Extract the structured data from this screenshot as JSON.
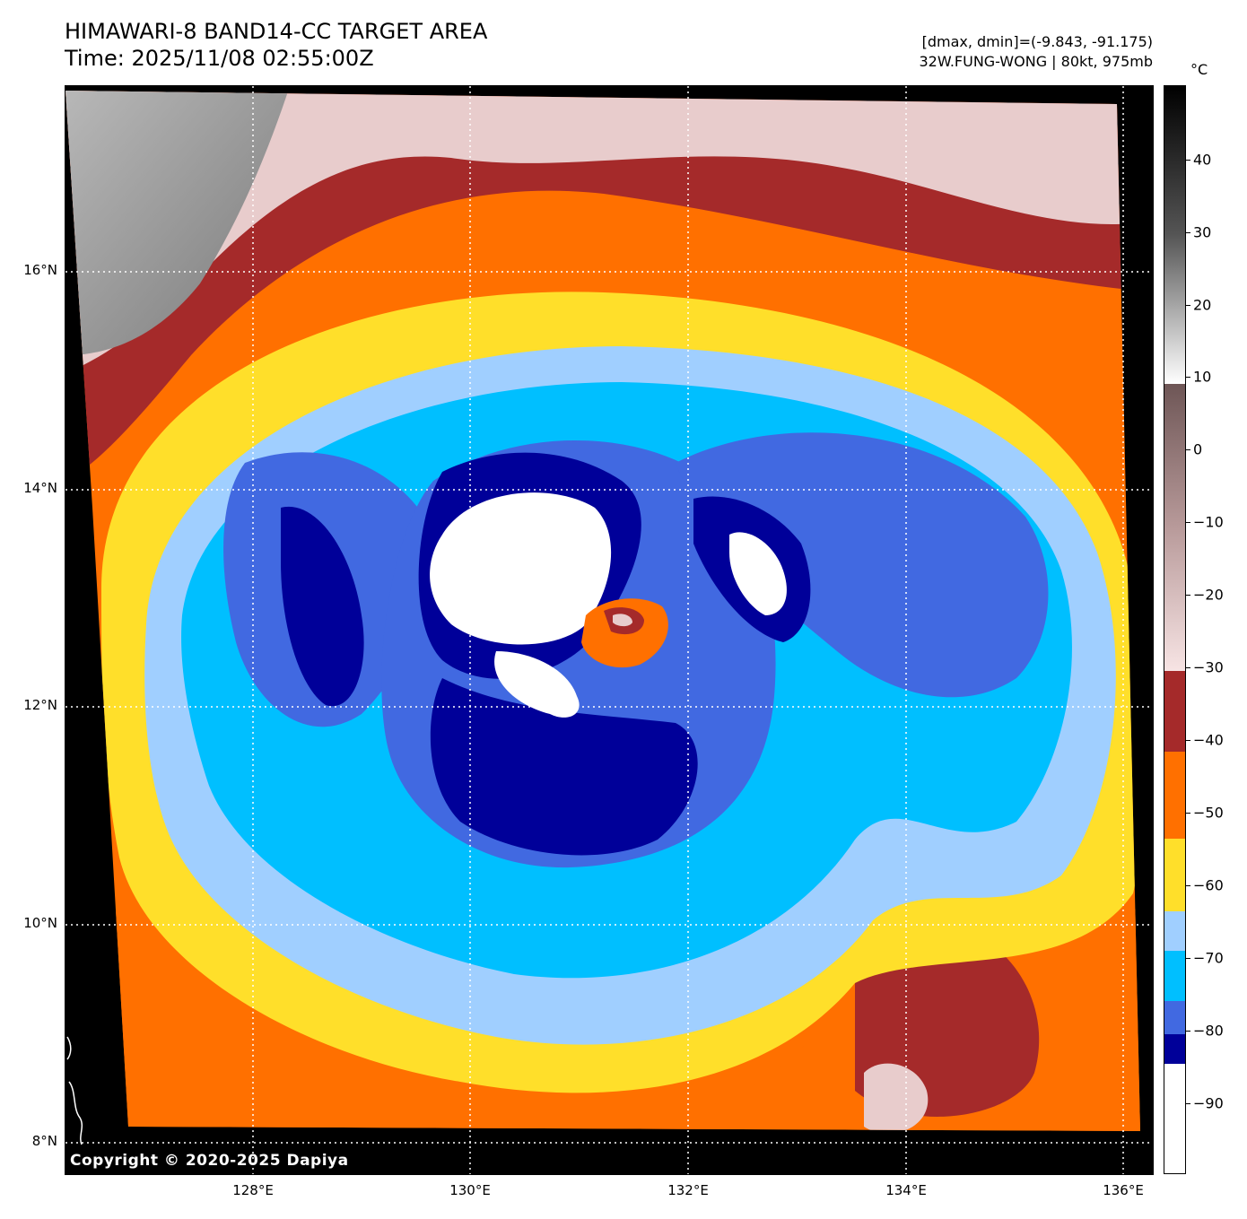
{
  "title": {
    "line1": "HIMAWARI-8 BAND14-CC TARGET AREA",
    "line2": "Time: 2025/11/08 02:55:00Z"
  },
  "info": {
    "line1": "[dmax, dmin]=(-9.843, -91.175)",
    "line2": "32W.FUNG-WONG | 80kt, 975mb"
  },
  "map": {
    "lat_labels": [
      "16°N",
      "14°N",
      "12°N",
      "10°N",
      "8°N"
    ],
    "lon_labels": [
      "128°E",
      "130°E",
      "132°E",
      "134°E",
      "136°E"
    ],
    "copyright": "Copyright © 2020-2025 Dapiya"
  },
  "colorbar": {
    "unit": "°C",
    "ticks": [
      "40",
      "30",
      "20",
      "10",
      "0",
      "−10",
      "−20",
      "−30",
      "−40",
      "−50",
      "−60",
      "−70",
      "−80",
      "−90"
    ],
    "colors": {
      "white": "#ffffff",
      "navy": "#000099",
      "royal_blue": "#4169e1",
      "deep_sky_blue": "#00bfff",
      "light_sky_blue": "#a0cfff",
      "gold": "#ffdf2a",
      "orange": "#ff7000",
      "brown": "#a52a2a",
      "pink_warm": "#f0d8d8",
      "gray_warm": "#7a6a6a"
    }
  }
}
